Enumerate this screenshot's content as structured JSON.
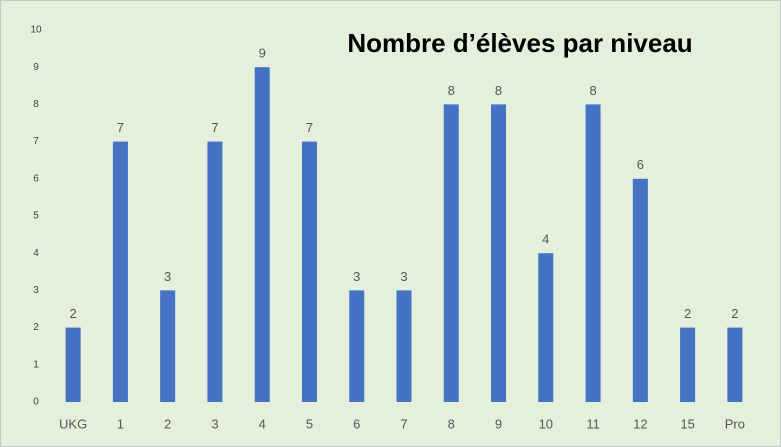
{
  "chart_data": {
    "type": "bar",
    "title": "Nombre d’élèves par niveau",
    "categories": [
      "UKG",
      "1",
      "2",
      "3",
      "4",
      "5",
      "6",
      "7",
      "8",
      "9",
      "10",
      "11",
      "12",
      "15",
      "Pro"
    ],
    "values": [
      2,
      7,
      3,
      7,
      9,
      7,
      3,
      3,
      8,
      8,
      4,
      8,
      6,
      2,
      2
    ],
    "color": "#4472c4",
    "ylim": [
      0,
      10
    ],
    "yticks": [
      0,
      1,
      2,
      3,
      4,
      5,
      6,
      7,
      8,
      9,
      10
    ],
    "grid": false
  }
}
